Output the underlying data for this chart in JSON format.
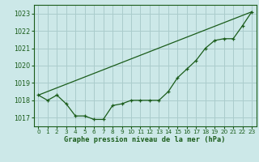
{
  "hours": [
    0,
    1,
    2,
    3,
    4,
    5,
    6,
    7,
    8,
    9,
    10,
    11,
    12,
    13,
    14,
    15,
    16,
    17,
    18,
    19,
    20,
    21,
    22,
    23
  ],
  "pressure_actual": [
    1018.3,
    1018.0,
    1018.3,
    1017.8,
    1017.1,
    1017.1,
    1016.9,
    1016.9,
    1017.7,
    1017.8,
    1018.0,
    1018.0,
    1018.0,
    1018.0,
    1018.5,
    1019.3,
    1019.8,
    1020.3,
    1021.0,
    1021.45,
    1021.55,
    1021.55,
    1022.3,
    1023.1
  ],
  "pressure_linear": [
    1018.3,
    1018.52,
    1018.74,
    1018.96,
    1019.18,
    1019.4,
    1019.62,
    1019.84,
    1020.06,
    1020.28,
    1020.5,
    1020.72,
    1020.94,
    1021.16,
    1021.38,
    1021.6,
    1021.82,
    1022.04,
    1022.26,
    1022.48,
    1022.7,
    1022.92,
    1023.1,
    1023.1
  ],
  "bg_color": "#cce8e8",
  "grid_color": "#aacccc",
  "line_color": "#1a5c1a",
  "xlabel": "Graphe pression niveau de la mer (hPa)",
  "ylim_min": 1016.5,
  "ylim_max": 1023.5,
  "yticks": [
    1017,
    1018,
    1019,
    1020,
    1021,
    1022,
    1023
  ],
  "xticks": [
    0,
    1,
    2,
    3,
    4,
    5,
    6,
    7,
    8,
    9,
    10,
    11,
    12,
    13,
    14,
    15,
    16,
    17,
    18,
    19,
    20,
    21,
    22,
    23
  ],
  "figw": 3.2,
  "figh": 2.0,
  "dpi": 100
}
